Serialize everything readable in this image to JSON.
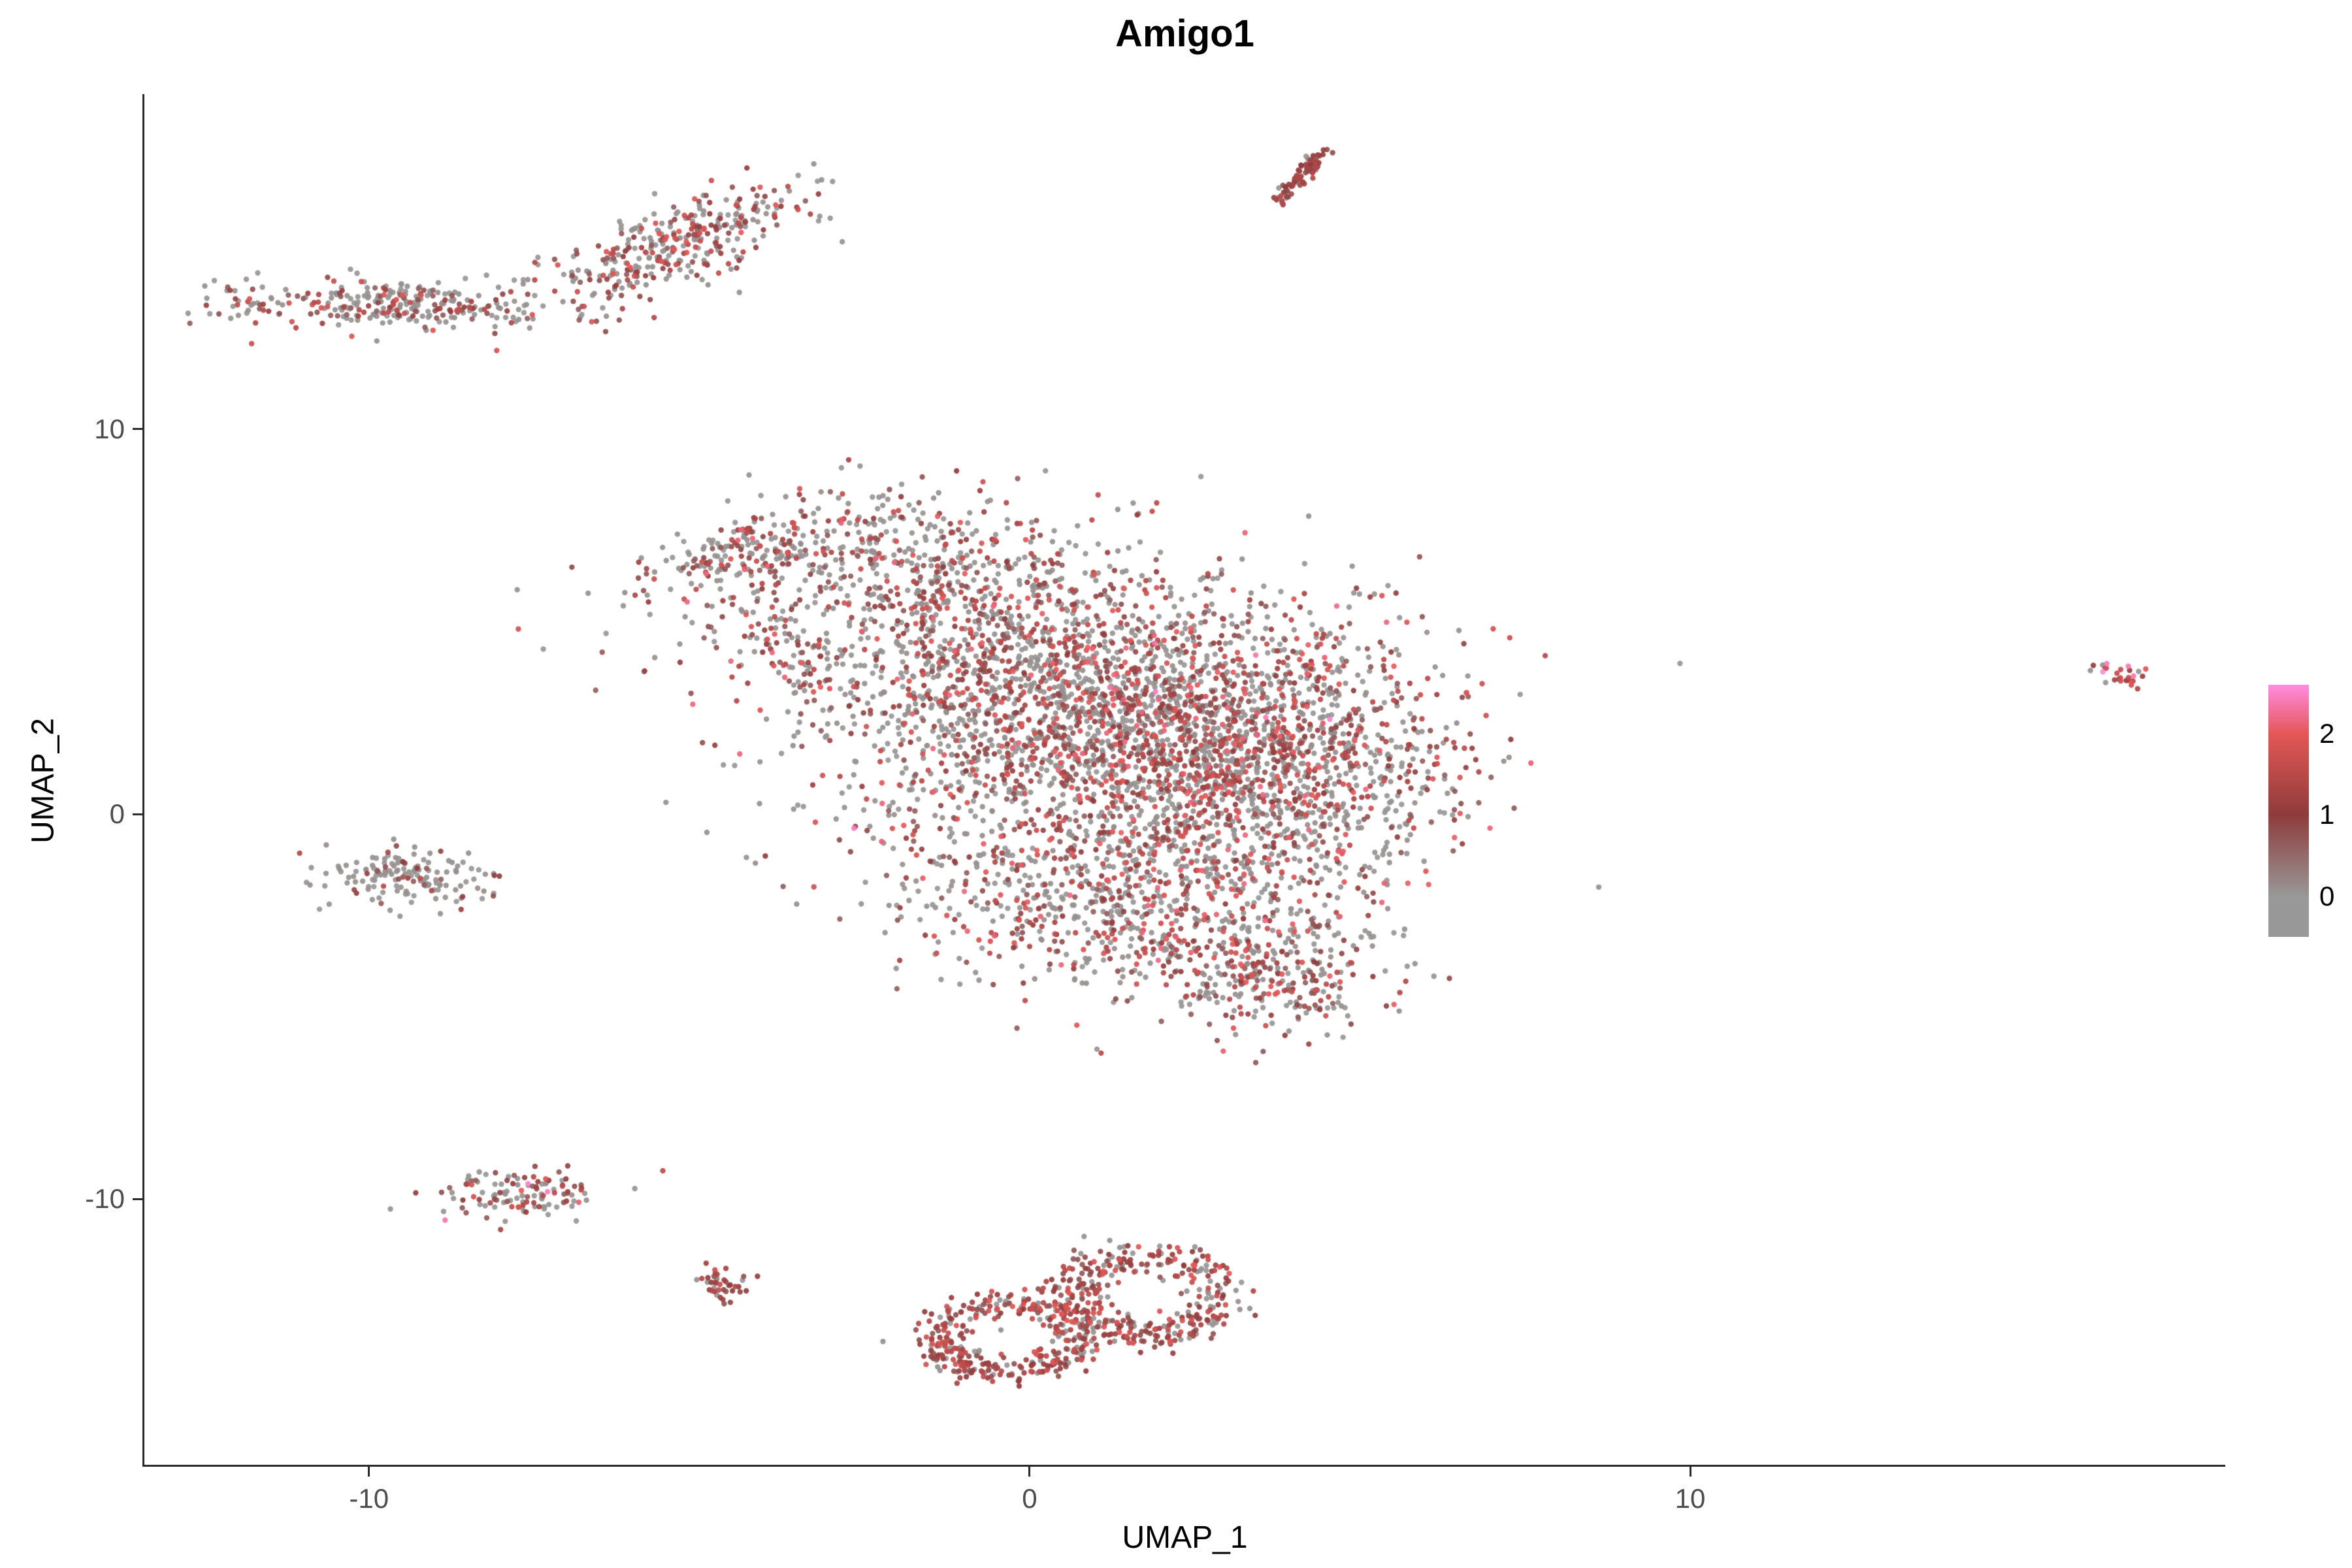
{
  "chart_data": {
    "type": "scatter",
    "title": "Amigo1",
    "xlabel": "UMAP_1",
    "ylabel": "UMAP_2",
    "xlim": [
      -13.4,
      18.1
    ],
    "ylim": [
      -16.9,
      18.7
    ],
    "xticks": [
      -10,
      0,
      10
    ],
    "yticks": [
      -10,
      0,
      10
    ],
    "grid": false,
    "legend_position": "right",
    "point_radius_px": 4.2,
    "colorbar": {
      "ticks": [
        2,
        1,
        0
      ],
      "display_min": -0.5,
      "vmax": 2.6,
      "stops": [
        {
          "value": 0,
          "color": "#989898"
        },
        {
          "value": 1,
          "color": "#8f3b3b"
        },
        {
          "value": 2,
          "color": "#e45757"
        },
        {
          "value": 2.6,
          "color": "#ff8ce0"
        }
      ]
    },
    "grey_color": "#989898",
    "seed": 20240613,
    "clusters": [
      {
        "name": "top-streak",
        "shape": "streak",
        "x1": 3.75,
        "y1": 15.9,
        "x2": 4.45,
        "y2": 17.2,
        "w": 0.07,
        "n": 80,
        "red_frac": 0.85,
        "v_lo": 0.7,
        "v_hi": 1.5
      },
      {
        "name": "top-left-blob",
        "shape": "gauss",
        "cx": -5.35,
        "cy": 14.8,
        "sx": 1.15,
        "sy": 0.45,
        "rot": 0.6,
        "n": 340,
        "red_frac": 0.5,
        "v_lo": 0.6,
        "v_hi": 2.0
      },
      {
        "name": "far-left-bar",
        "shape": "gauss",
        "cx": -9.6,
        "cy": 13.2,
        "sx": 1.35,
        "sy": 0.33,
        "rot": -0.05,
        "n": 300,
        "red_frac": 0.45,
        "v_lo": 0.6,
        "v_hi": 2.0
      },
      {
        "name": "main-arm",
        "shape": "gauss",
        "cx": -4.3,
        "cy": 6.8,
        "sx": 1.05,
        "sy": 0.5,
        "rot": 0.35,
        "n": 180,
        "red_frac": 0.5,
        "v_lo": 0.6,
        "v_hi": 2.2
      },
      {
        "name": "main-spike",
        "shape": "gauss",
        "cx": -3.55,
        "cy": 4.4,
        "sx": 0.35,
        "sy": 0.75,
        "rot": 0.45,
        "n": 80,
        "red_frac": 0.55,
        "v_lo": 0.6,
        "v_hi": 2.2
      },
      {
        "name": "main-upper",
        "shape": "gauss",
        "cx": -1.7,
        "cy": 6.4,
        "sx": 1.45,
        "sy": 1.05,
        "rot": -0.35,
        "n": 420,
        "red_frac": 0.45,
        "v_lo": 0.6,
        "v_hi": 2.2,
        "pink_prob": 0.004
      },
      {
        "name": "main-core",
        "shape": "gauss",
        "cx": 0.9,
        "cy": 2.7,
        "sx": 2.3,
        "sy": 1.85,
        "rot": -0.3,
        "n": 2600,
        "red_frac": 0.46,
        "v_lo": 0.6,
        "v_hi": 2.2,
        "pink_prob": 0.004
      },
      {
        "name": "main-right",
        "shape": "gauss",
        "cx": 3.6,
        "cy": 1.1,
        "sx": 1.35,
        "sy": 1.55,
        "rot": -0.25,
        "n": 900,
        "red_frac": 0.5,
        "v_lo": 0.6,
        "v_hi": 2.2,
        "pink_prob": 0.003
      },
      {
        "name": "main-lower",
        "shape": "gauss",
        "cx": 1.6,
        "cy": -2.3,
        "sx": 1.85,
        "sy": 1.25,
        "rot": -0.25,
        "n": 820,
        "red_frac": 0.5,
        "v_lo": 0.6,
        "v_hi": 2.2
      },
      {
        "name": "main-tip",
        "shape": "gauss",
        "cx": 3.7,
        "cy": -4.2,
        "sx": 0.75,
        "sy": 0.7,
        "rot": -0.5,
        "n": 230,
        "red_frac": 0.62,
        "v_lo": 0.6,
        "v_hi": 2.1
      },
      {
        "name": "left-mid-small",
        "shape": "gauss",
        "cx": -9.4,
        "cy": -1.6,
        "sx": 0.7,
        "sy": 0.33,
        "rot": -0.15,
        "n": 150,
        "red_frac": 0.22,
        "v_lo": 0.6,
        "v_hi": 1.6
      },
      {
        "name": "left-low-small",
        "shape": "gauss",
        "cx": -7.8,
        "cy": -9.9,
        "sx": 0.7,
        "sy": 0.3,
        "rot": 0.12,
        "n": 120,
        "red_frac": 0.5,
        "v_lo": 0.6,
        "v_hi": 2.1,
        "pink_prob": 0.02
      },
      {
        "name": "tiny-left-bottom",
        "shape": "gauss",
        "cx": -4.65,
        "cy": -12.2,
        "sx": 0.22,
        "sy": 0.2,
        "rot": 0,
        "n": 40,
        "red_frac": 0.7,
        "v_lo": 0.7,
        "v_hi": 1.8
      },
      {
        "name": "bottom-left-ring",
        "shape": "ring",
        "cx": -0.35,
        "cy": -13.6,
        "r": 1.05,
        "th": 0.22,
        "ry_ratio": 0.85,
        "n": 340,
        "red_frac": 0.8,
        "v_lo": 0.7,
        "v_hi": 2.0
      },
      {
        "name": "bottom-right-ring",
        "shape": "ring",
        "cx": 1.75,
        "cy": -12.5,
        "r": 1.15,
        "th": 0.25,
        "ry_ratio": 0.9,
        "n": 350,
        "red_frac": 0.8,
        "v_lo": 0.7,
        "v_hi": 2.0
      },
      {
        "name": "far-right-dot",
        "shape": "gauss",
        "cx": 16.6,
        "cy": 3.6,
        "sx": 0.25,
        "sy": 0.15,
        "rot": -0.4,
        "n": 28,
        "red_frac": 0.85,
        "v_lo": 1.0,
        "v_hi": 2.2,
        "pink_prob": 0.08
      }
    ]
  }
}
